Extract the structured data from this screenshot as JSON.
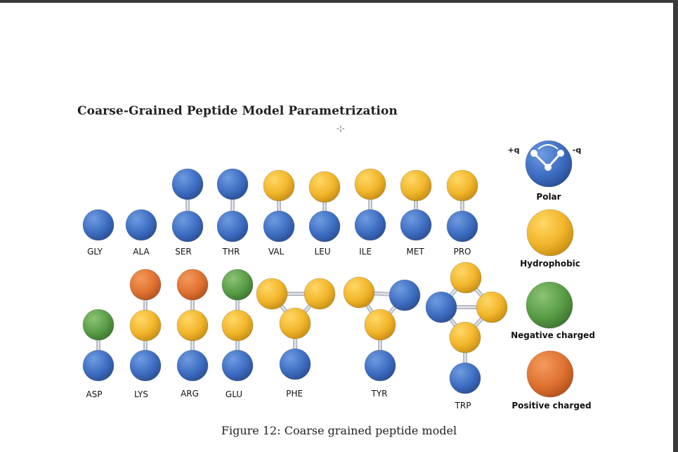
{
  "page": {
    "section_title": "Coarse-Grained Peptide Model Parametrization",
    "cursor_glyph": "-¦-",
    "caption": "Figure 12: Coarse grained peptide model"
  },
  "colors": {
    "polar": "#3f6fc3",
    "hydrophobic": "#f2b62b",
    "negative": "#5a9e47",
    "positive": "#e07332",
    "bond": "#b7bcc4"
  },
  "residues": [
    {
      "name": "GLY",
      "beads": [
        "polar"
      ]
    },
    {
      "name": "ALA",
      "beads": [
        "polar"
      ]
    },
    {
      "name": "SER",
      "beads": [
        "polar",
        "polar"
      ]
    },
    {
      "name": "THR",
      "beads": [
        "polar",
        "polar"
      ]
    },
    {
      "name": "VAL",
      "beads": [
        "polar",
        "hydrophobic"
      ]
    },
    {
      "name": "LEU",
      "beads": [
        "polar",
        "hydrophobic"
      ]
    },
    {
      "name": "ILE",
      "beads": [
        "polar",
        "hydrophobic"
      ]
    },
    {
      "name": "MET",
      "beads": [
        "polar",
        "hydrophobic"
      ]
    },
    {
      "name": "PRO",
      "beads": [
        "polar",
        "hydrophobic"
      ]
    },
    {
      "name": "ASP",
      "beads": [
        "polar",
        "negative"
      ]
    },
    {
      "name": "LYS",
      "beads": [
        "polar",
        "hydrophobic",
        "positive"
      ]
    },
    {
      "name": "ARG",
      "beads": [
        "polar",
        "hydrophobic",
        "positive"
      ]
    },
    {
      "name": "GLU",
      "beads": [
        "polar",
        "hydrophobic",
        "negative"
      ]
    },
    {
      "name": "PHE",
      "beads": [
        "polar",
        "hydrophobic",
        "hydrophobic",
        "hydrophobic"
      ]
    },
    {
      "name": "TYR",
      "beads": [
        "polar",
        "hydrophobic",
        "hydrophobic",
        "polar"
      ]
    },
    {
      "name": "TRP",
      "beads": [
        "polar",
        "hydrophobic",
        "hydrophobic",
        "hydrophobic",
        "polar"
      ]
    }
  ],
  "legend": {
    "items": [
      {
        "key": "polar",
        "label": "Polar"
      },
      {
        "key": "hydrophobic",
        "label": "Hydrophobic"
      },
      {
        "key": "negative",
        "label": "Negative charged"
      },
      {
        "key": "positive",
        "label": "Positive charged"
      }
    ],
    "plus_q": "+q",
    "minus_q": "-q"
  }
}
